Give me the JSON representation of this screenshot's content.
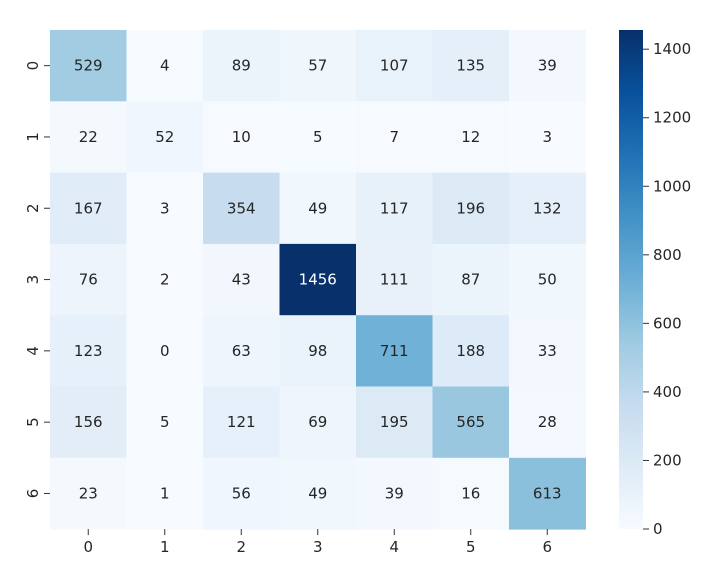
{
  "chart_data": {
    "type": "heatmap",
    "row_labels": [
      "0",
      "1",
      "2",
      "3",
      "4",
      "5",
      "6"
    ],
    "col_labels": [
      "0",
      "1",
      "2",
      "3",
      "4",
      "5",
      "6"
    ],
    "values": [
      [
        529,
        4,
        89,
        57,
        107,
        135,
        39
      ],
      [
        22,
        52,
        10,
        5,
        7,
        12,
        3
      ],
      [
        167,
        3,
        354,
        49,
        117,
        196,
        132
      ],
      [
        76,
        2,
        43,
        1456,
        111,
        87,
        50
      ],
      [
        123,
        0,
        63,
        98,
        711,
        188,
        33
      ],
      [
        156,
        5,
        121,
        69,
        195,
        565,
        28
      ],
      [
        23,
        1,
        56,
        49,
        39,
        16,
        613
      ]
    ],
    "colormap": "Blues",
    "vmin": 0,
    "vmax": 1456,
    "colorbar_ticks": [
      "0",
      "200",
      "400",
      "600",
      "800",
      "1000",
      "1200",
      "1400"
    ],
    "annotations": true,
    "grid": false
  }
}
